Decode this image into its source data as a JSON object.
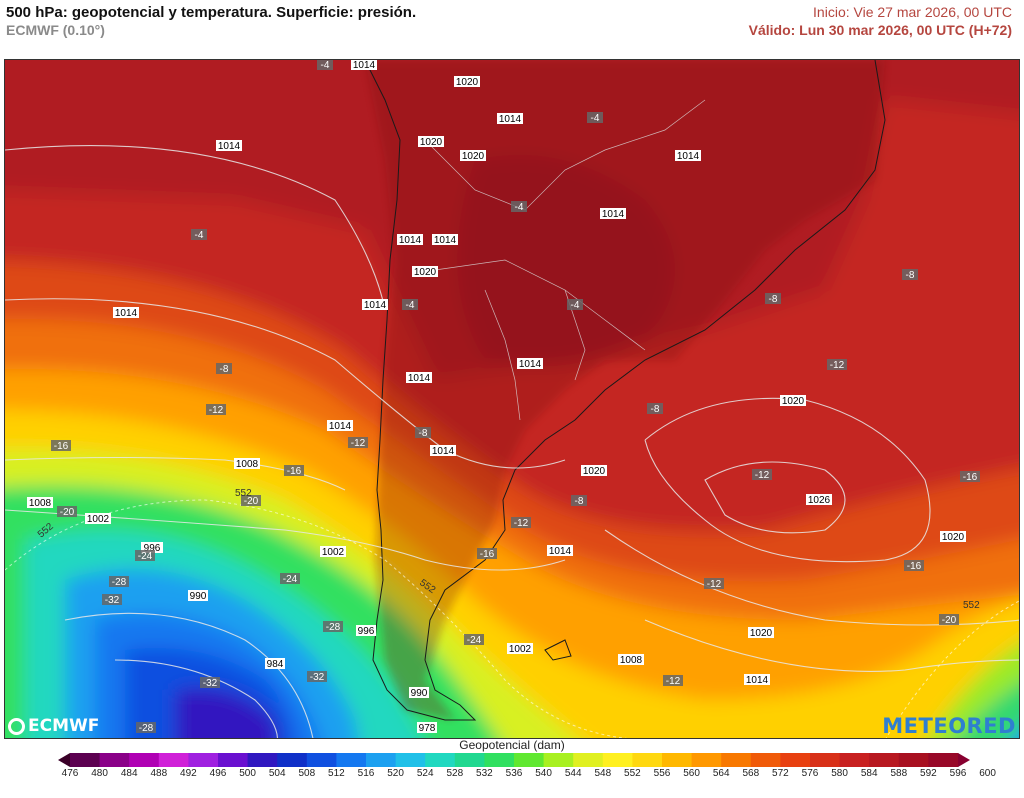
{
  "header": {
    "title": "500 hPa: geopotencial y temperatura. Superficie: presión.",
    "model": "ECMWF (0.10°)",
    "init": "Inicio: Vie 27 mar 2026, 00 UTC",
    "valid": "Válido: Lun 30 mar 2026, 00 UTC (H+72)"
  },
  "logos": {
    "left": "ECMWF",
    "right": "METEORED"
  },
  "colorbar": {
    "title": "Geopotencial (dam)",
    "values": [
      "476",
      "480",
      "484",
      "488",
      "492",
      "496",
      "500",
      "504",
      "508",
      "512",
      "516",
      "520",
      "524",
      "528",
      "532",
      "536",
      "540",
      "544",
      "548",
      "552",
      "556",
      "560",
      "564",
      "568",
      "572",
      "576",
      "580",
      "584",
      "588",
      "592",
      "596",
      "600"
    ],
    "colors": [
      "#3a0028",
      "#5c0050",
      "#8a0088",
      "#b000b4",
      "#d020d8",
      "#a020e0",
      "#6a10d0",
      "#3018c0",
      "#1030c8",
      "#1050e0",
      "#1478f0",
      "#1ca0f0",
      "#20c0e8",
      "#20d8c0",
      "#20d890",
      "#30e060",
      "#60e830",
      "#a8f020",
      "#e0f020",
      "#fff020",
      "#ffd810",
      "#ffb800",
      "#ff9800",
      "#f87800",
      "#f05a08",
      "#e84010",
      "#d83018",
      "#c82020",
      "#b81820",
      "#a81020",
      "#980828",
      "#880030"
    ]
  },
  "map": {
    "pressure_labels": [
      "1014",
      "1020",
      "1014",
      "1020",
      "1020",
      "1014",
      "1014",
      "1014",
      "1014",
      "1020",
      "1014",
      "1014",
      "1014",
      "1014",
      "1014",
      "1020",
      "1014",
      "1020",
      "1026",
      "1020",
      "1014",
      "1020",
      "1008",
      "1014",
      "1008",
      "1002",
      "996",
      "1002",
      "990",
      "996",
      "984",
      "990",
      "978",
      "1002",
      "1008",
      "1014"
    ],
    "temperature_labels": [
      "-4",
      "-4",
      "-4",
      "-4",
      "-4",
      "-4",
      "-8",
      "-8",
      "-8",
      "-8",
      "-8",
      "-12",
      "-12",
      "-12",
      "-12",
      "-12",
      "-12",
      "-16",
      "-16",
      "-16",
      "-16",
      "-16",
      "-20",
      "-20",
      "-20",
      "-24",
      "-24",
      "-24",
      "-28",
      "-28",
      "-28",
      "-32",
      "-32",
      "-32",
      "-12",
      "-8"
    ],
    "contour_labels": [
      "552",
      "552",
      "552",
      "552"
    ]
  }
}
